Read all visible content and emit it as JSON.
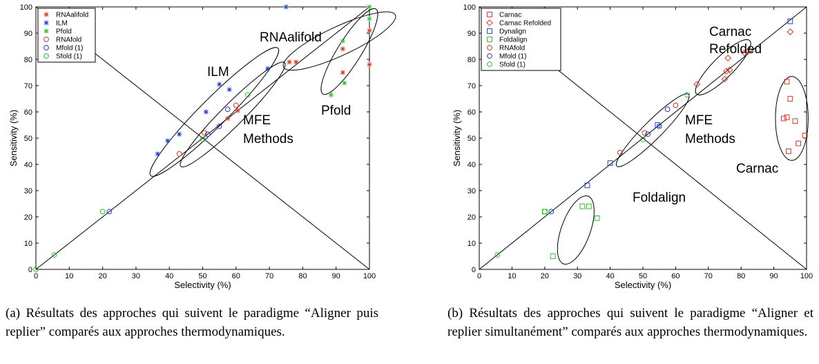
{
  "chart_data": [
    {
      "type": "scatter",
      "xlabel": "Selectivity (%)",
      "ylabel": "Sensitivity (%)",
      "xlim": [
        0,
        100
      ],
      "ylim": [
        0,
        100
      ],
      "xticks": [
        0,
        10,
        20,
        30,
        40,
        50,
        60,
        70,
        80,
        90,
        100
      ],
      "yticks": [
        0,
        10,
        20,
        30,
        40,
        50,
        60,
        70,
        80,
        90,
        100
      ],
      "legend_position": "top-left",
      "series": [
        {
          "name": "RNAalifold",
          "marker": "asterisk",
          "color": "#e8311a",
          "points": [
            [
              57.5,
              57.5
            ],
            [
              60.5,
              60.5
            ],
            [
              76,
              79
            ],
            [
              78,
              79
            ],
            [
              92,
              75
            ],
            [
              92,
              84
            ],
            [
              100,
              91
            ],
            [
              100,
              78
            ]
          ]
        },
        {
          "name": "ILM",
          "marker": "asterisk",
          "color": "#1a3fe0",
          "points": [
            [
              75,
              100
            ],
            [
              36.5,
              44
            ],
            [
              39.5,
              49
            ],
            [
              43,
              51.5
            ],
            [
              51,
              60
            ],
            [
              55,
              70.5
            ],
            [
              58,
              68.5
            ],
            [
              69.5,
              76.5
            ]
          ]
        },
        {
          "name": "Pfold",
          "marker": "asterisk",
          "color": "#22cc22",
          "points": [
            [
              88.5,
              66.5
            ],
            [
              92.5,
              71
            ],
            [
              92,
              87
            ],
            [
              100,
              95.5
            ],
            [
              100,
              100
            ]
          ]
        },
        {
          "name": "RNAfold",
          "marker": "circle",
          "color": "#e8311a",
          "points": [
            [
              43,
              44
            ],
            [
              50.5,
              52
            ],
            [
              60,
              62.5
            ]
          ]
        },
        {
          "name": "Mfold (1)",
          "marker": "circle",
          "color": "#1a3fe0",
          "points": [
            [
              22,
              22
            ],
            [
              51.5,
              51.5
            ],
            [
              55,
              54.5
            ],
            [
              57.5,
              61
            ]
          ]
        },
        {
          "name": "Sfold (1)",
          "marker": "circle",
          "color": "#22cc22",
          "points": [
            [
              0,
              0
            ],
            [
              5.5,
              5.5
            ],
            [
              20,
              22
            ],
            [
              50,
              49.5
            ],
            [
              63.5,
              66.5
            ]
          ]
        }
      ],
      "annotations": [
        "RNAalifold",
        "ILM",
        "MFE",
        "Methods",
        "Pfold"
      ],
      "ellipses": [
        {
          "cx": 59,
          "cy": 59,
          "rx": 22,
          "ry": 4.2,
          "angle": 45
        },
        {
          "cx": 53.5,
          "cy": 60,
          "rx": 27,
          "ry": 5.2,
          "angle": 45
        },
        {
          "cx": 94,
          "cy": 83,
          "rx": 15,
          "ry": 4.5,
          "angle": 58
        },
        {
          "cx": 91,
          "cy": 87,
          "rx": 18.5,
          "ry": 5.5,
          "angle": 25
        }
      ]
    },
    {
      "type": "scatter",
      "xlabel": "Selectivity (%)",
      "ylabel": "Sensitivity (%)",
      "xlim": [
        0,
        100
      ],
      "ylim": [
        0,
        100
      ],
      "xticks": [
        0,
        10,
        20,
        30,
        40,
        50,
        60,
        70,
        80,
        90,
        100
      ],
      "yticks": [
        0,
        10,
        20,
        30,
        40,
        50,
        60,
        70,
        80,
        90,
        100
      ],
      "legend_position": "top-left",
      "series": [
        {
          "name": "Carnac",
          "marker": "square",
          "color": "#e8311a",
          "points": [
            [
              94,
              71.5
            ],
            [
              95,
              65
            ],
            [
              96.5,
              56.5
            ],
            [
              97.5,
              48
            ],
            [
              99.5,
              51
            ],
            [
              93,
              57.5
            ],
            [
              94,
              58
            ],
            [
              94.5,
              45
            ]
          ]
        },
        {
          "name": "Carnac Refolded",
          "marker": "diamond",
          "color": "#e8311a",
          "points": [
            [
              66.5,
              70.5
            ],
            [
              75,
              72.5
            ],
            [
              75.5,
              75.5
            ],
            [
              76.5,
              76
            ],
            [
              76,
              80.5
            ],
            [
              81,
              82.5
            ],
            [
              82,
              83
            ],
            [
              95,
              90.5
            ]
          ]
        },
        {
          "name": "Dynalign",
          "marker": "square",
          "color": "#1a3fe0",
          "points": [
            [
              33,
              32
            ],
            [
              40,
              40.5
            ],
            [
              54.5,
              55
            ],
            [
              95,
              94.5
            ]
          ]
        },
        {
          "name": "Foldalign",
          "marker": "square",
          "color": "#22cc22",
          "points": [
            [
              22.5,
              5
            ],
            [
              31.5,
              24
            ],
            [
              33.5,
              24
            ],
            [
              36,
              19.5
            ],
            [
              20,
              22
            ]
          ]
        },
        {
          "name": "RNAfold",
          "marker": "circle",
          "color": "#e8311a",
          "points": [
            [
              43,
              44.5
            ],
            [
              50.5,
              52
            ],
            [
              60,
              62.5
            ]
          ]
        },
        {
          "name": "Mfold (1)",
          "marker": "circle",
          "color": "#1a3fe0",
          "points": [
            [
              22,
              22
            ],
            [
              51.5,
              51.5
            ],
            [
              55,
              54.5
            ],
            [
              57.5,
              61
            ]
          ]
        },
        {
          "name": "Sfold (1)",
          "marker": "circle",
          "color": "#22cc22",
          "points": [
            [
              5.5,
              5.5
            ],
            [
              20,
              22
            ],
            [
              50,
              49.5
            ],
            [
              63.5,
              66.5
            ]
          ]
        }
      ],
      "annotations": [
        "Carnac",
        "Refolded",
        "MFE",
        "Methods",
        "Carnac",
        "Foldalign"
      ],
      "ellipses": [
        {
          "cx": 53,
          "cy": 53,
          "rx": 15.5,
          "ry": 3.5,
          "angle": 45
        },
        {
          "cx": 74.5,
          "cy": 77,
          "rx": 11.5,
          "ry": 4,
          "angle": 45
        },
        {
          "cx": 95.5,
          "cy": 57.5,
          "rx": 5,
          "ry": 16,
          "angle": 0
        },
        {
          "cx": 29.5,
          "cy": 15,
          "rx": 11,
          "ry": 5.5,
          "angle": 70
        }
      ]
    }
  ],
  "captions": {
    "a": "(a) Résultats des approches qui suivent le paradigme “Aligner puis replier” comparés aux approches thermodynamiques.",
    "b": "(b) Résultats des approches qui suivent le paradigme “Aligner et replier simultanément” comparés aux approches thermodynamiques."
  }
}
